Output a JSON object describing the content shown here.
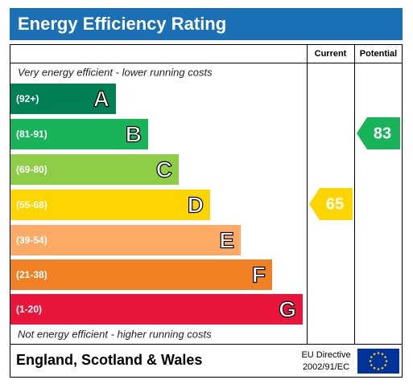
{
  "title": "Energy Efficiency Rating",
  "columns": [
    "Current",
    "Potential"
  ],
  "top_note": "Very energy efficient - lower running costs",
  "bottom_note": "Not energy efficient - higher running costs",
  "bands": [
    {
      "range": "(92+)",
      "letter": "A",
      "color": "#008054"
    },
    {
      "range": "(81-91)",
      "letter": "B",
      "color": "#19b459"
    },
    {
      "range": "(69-80)",
      "letter": "C",
      "color": "#8dce46"
    },
    {
      "range": "(55-68)",
      "letter": "D",
      "color": "#ffd500"
    },
    {
      "range": "(39-54)",
      "letter": "E",
      "color": "#fcaa65"
    },
    {
      "range": "(21-38)",
      "letter": "F",
      "color": "#ef8023"
    },
    {
      "range": "(1-20)",
      "letter": "G",
      "color": "#e9153b"
    }
  ],
  "current": 65,
  "potential": 83,
  "footer": {
    "region": "England, Scotland & Wales",
    "directive": "EU Directive",
    "directive_number": "2002/91/EC"
  }
}
